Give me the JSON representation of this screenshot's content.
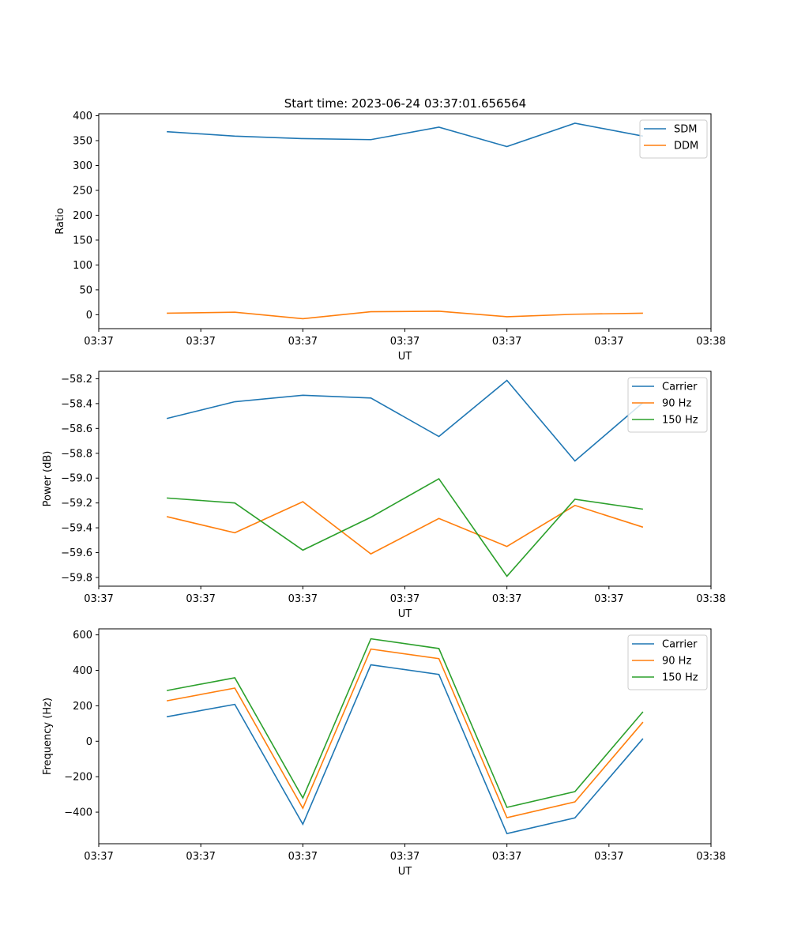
{
  "figure": {
    "title": "Start time: 2023-06-24 03:37:01.656564"
  },
  "chart_data": [
    {
      "type": "line",
      "title": "Start time: 2023-06-24 03:37:01.656564",
      "xlabel": "UT",
      "ylabel": "Ratio",
      "x": [
        1,
        2,
        3,
        4,
        5,
        6,
        7,
        8
      ],
      "xlim": [
        0,
        9
      ],
      "x_ticks": [
        0,
        1.5,
        3,
        4.5,
        6,
        7.5,
        9
      ],
      "x_tick_labels": [
        "03:37",
        "03:37",
        "03:37",
        "03:37",
        "03:37",
        "03:37",
        "03:38"
      ],
      "ylim": [
        -28,
        404
      ],
      "y_ticks": [
        0,
        50,
        100,
        150,
        200,
        250,
        300,
        350,
        400
      ],
      "y_tick_labels": [
        "0",
        "50",
        "100",
        "150",
        "200",
        "250",
        "300",
        "350",
        "400"
      ],
      "legend_position": "top-right",
      "grid": false,
      "series": [
        {
          "name": "SDM",
          "color": "#1f77b4",
          "values": [
            368,
            359,
            354,
            352,
            377,
            338,
            385,
            359
          ]
        },
        {
          "name": "DDM",
          "color": "#ff7f0e",
          "values": [
            3,
            5,
            -8,
            6,
            7,
            -4,
            1,
            3
          ]
        }
      ]
    },
    {
      "type": "line",
      "xlabel": "UT",
      "ylabel": "Power (dB)",
      "x": [
        1,
        2,
        3,
        4,
        5,
        6,
        7,
        8
      ],
      "xlim": [
        0,
        9
      ],
      "x_ticks": [
        0,
        1.5,
        3,
        4.5,
        6,
        7.5,
        9
      ],
      "x_tick_labels": [
        "03:37",
        "03:37",
        "03:37",
        "03:37",
        "03:37",
        "03:37",
        "03:38"
      ],
      "ylim": [
        -59.87,
        -58.14
      ],
      "y_ticks": [
        -59.8,
        -59.6,
        -59.4,
        -59.2,
        -59.0,
        -58.8,
        -58.6,
        -58.4,
        -58.2
      ],
      "y_tick_labels": [
        "−59.8",
        "−59.6",
        "−59.4",
        "−59.2",
        "−59.0",
        "−58.8",
        "−58.6",
        "−58.4",
        "−58.2"
      ],
      "legend_position": "top-right",
      "grid": false,
      "series": [
        {
          "name": "Carrier",
          "color": "#1f77b4",
          "values": [
            -58.52,
            -58.385,
            -58.333,
            -58.355,
            -58.665,
            -58.213,
            -58.862,
            -58.392
          ]
        },
        {
          "name": "90 Hz",
          "color": "#ff7f0e",
          "values": [
            -59.31,
            -59.44,
            -59.19,
            -59.61,
            -59.325,
            -59.55,
            -59.22,
            -59.395
          ]
        },
        {
          "name": "150 Hz",
          "color": "#2ca02c",
          "values": [
            -59.16,
            -59.2,
            -59.58,
            -59.315,
            -59.005,
            -59.79,
            -59.17,
            -59.25
          ]
        }
      ]
    },
    {
      "type": "line",
      "xlabel": "UT",
      "ylabel": "Frequency (Hz)",
      "x": [
        1,
        2,
        3,
        4,
        5,
        6,
        7,
        8
      ],
      "xlim": [
        0,
        9
      ],
      "x_ticks": [
        0,
        1.5,
        3,
        4.5,
        6,
        7.5,
        9
      ],
      "x_tick_labels": [
        "03:37",
        "03:37",
        "03:37",
        "03:37",
        "03:37",
        "03:37",
        "03:38"
      ],
      "ylim": [
        -578,
        634
      ],
      "y_ticks": [
        -400,
        -200,
        0,
        200,
        400,
        600
      ],
      "y_tick_labels": [
        "−400",
        "−200",
        "0",
        "200",
        "400",
        "600"
      ],
      "legend_position": "top-right",
      "grid": false,
      "series": [
        {
          "name": "Carrier",
          "color": "#1f77b4",
          "values": [
            138,
            208,
            -468,
            431,
            377,
            -521,
            -432,
            15
          ]
        },
        {
          "name": "90 Hz",
          "color": "#ff7f0e",
          "values": [
            228,
            300,
            -378,
            520,
            466,
            -431,
            -342,
            108
          ]
        },
        {
          "name": "150 Hz",
          "color": "#2ca02c",
          "values": [
            286,
            358,
            -320,
            578,
            523,
            -373,
            -284,
            166
          ]
        }
      ]
    }
  ]
}
